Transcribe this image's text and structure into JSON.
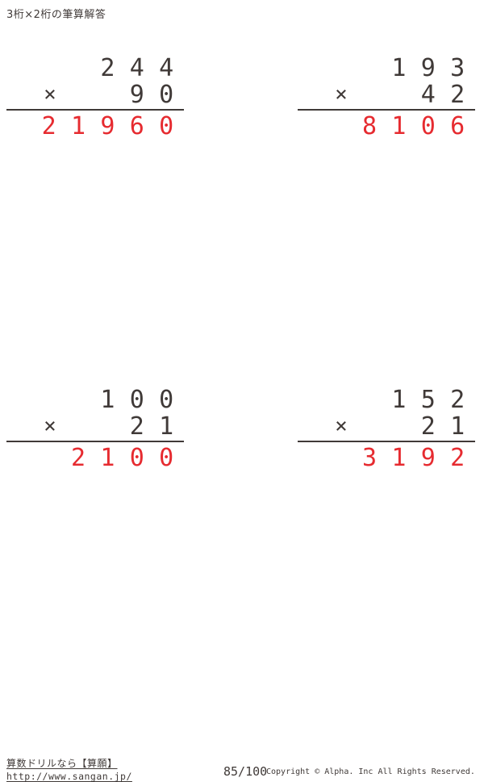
{
  "page": {
    "title": "3桁×2桁の筆算解答",
    "operator": "×"
  },
  "colors": {
    "ink": "#403a38",
    "answer_red": "#e62b30"
  },
  "problems": [
    {
      "multiplicand": "244",
      "multiplier": "90",
      "product": "21960"
    },
    {
      "multiplicand": "193",
      "multiplier": "42",
      "product": "8106"
    },
    {
      "multiplicand": "100",
      "multiplier": "21",
      "product": "2100"
    },
    {
      "multiplicand": "152",
      "multiplier": "21",
      "product": "3192"
    }
  ],
  "footer": {
    "site_label": "算数ドリルなら【算願】",
    "site_url": "http://www.sangan.jp/",
    "page_number": "85/100",
    "copyright": "Copyright © Alpha. Inc All Rights Reserved."
  }
}
